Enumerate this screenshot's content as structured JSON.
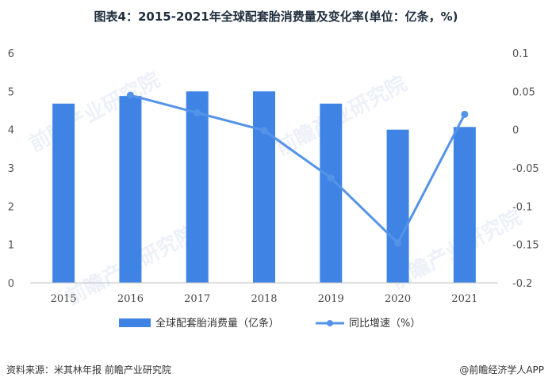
{
  "chart_data": {
    "type": "bar",
    "title": "图表4：2015-2021年全球配套胎消费量及变化率(单位：亿条，%)",
    "categories": [
      "2015",
      "2016",
      "2017",
      "2018",
      "2019",
      "2020",
      "2021"
    ],
    "series": [
      {
        "name": "全球配套胎消费量（亿条）",
        "type": "bar",
        "axis": "left",
        "color": "#3f84e5",
        "values": [
          4.68,
          4.88,
          5.0,
          5.0,
          4.68,
          4.0,
          4.07
        ]
      },
      {
        "name": "同比增速（%）",
        "type": "line",
        "axis": "right",
        "color": "#5593e8",
        "values": [
          null,
          0.045,
          0.022,
          -0.001,
          -0.063,
          -0.148,
          0.02
        ]
      }
    ],
    "y_left": {
      "min": 0,
      "max": 6,
      "ticks": [
        "0",
        "1",
        "2",
        "3",
        "4",
        "5",
        "6"
      ]
    },
    "y_right": {
      "min": -0.2,
      "max": 0.1,
      "ticks": [
        "-0.2",
        "-0.15",
        "-0.1",
        "-0.05",
        "0",
        "0.05",
        "0.1"
      ]
    },
    "grid": false,
    "legend": "bottom"
  },
  "footer": {
    "source": "资料来源：米其林年报 前瞻产业研究院",
    "brand": "@前瞻经济学人APP"
  }
}
